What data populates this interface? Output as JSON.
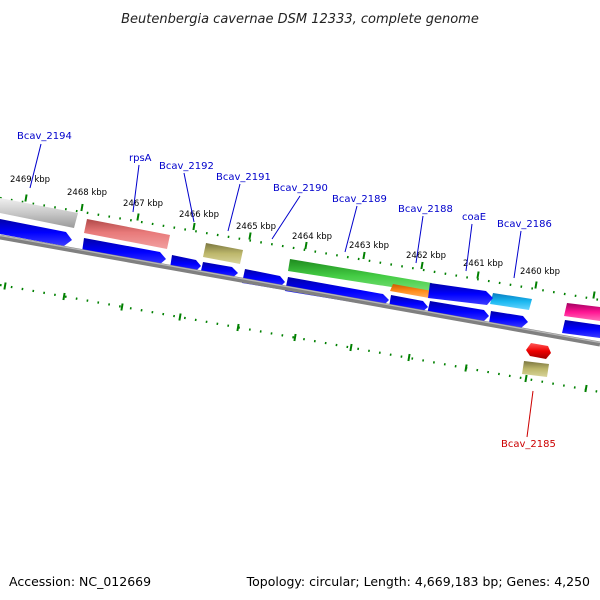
{
  "title": "Beutenbergia cavernae DSM 12333, complete genome",
  "footer": {
    "accession": "Accession: NC_012669",
    "summary": "Topology: circular; Length: 4,669,183 bp; Genes: 4,250"
  },
  "colors": {
    "backbone": "#808080",
    "tick": "#008000",
    "gene_label": "#0000cc",
    "gene_label_highlight": "#cc0000",
    "plus_strand_cds": "#0000ff",
    "minus_strand_cds": "#0000ff"
  },
  "position_labels": [
    "2469 kbp",
    "2468 kbp",
    "2467 kbp",
    "2466 kbp",
    "2465 kbp",
    "2464 kbp",
    "2463 kbp",
    "2462 kbp",
    "2461 kbp",
    "2460 kbp"
  ],
  "gene_labels": [
    {
      "name": "Bcav_2194",
      "color": "#0000cc"
    },
    {
      "name": "rpsA",
      "color": "#0000cc"
    },
    {
      "name": "Bcav_2192",
      "color": "#0000cc"
    },
    {
      "name": "Bcav_2191",
      "color": "#0000cc"
    },
    {
      "name": "Bcav_2190",
      "color": "#0000cc"
    },
    {
      "name": "Bcav_2189",
      "color": "#0000cc"
    },
    {
      "name": "Bcav_2188",
      "color": "#0000cc"
    },
    {
      "name": "coaE",
      "color": "#0000cc"
    },
    {
      "name": "Bcav_2186",
      "color": "#0000cc"
    },
    {
      "name": "Bcav_2185",
      "color": "#cc0000"
    }
  ],
  "feature_colors": {
    "gray": "#c8c8c8",
    "salmon": "#e87a7a",
    "khaki": "#bdb76b",
    "green": "#44cc44",
    "orange": "#ff8c1a",
    "cyan": "#1ab8f0",
    "magenta": "#ff1493",
    "red": "#ee0000",
    "blue": "#0000ff"
  }
}
